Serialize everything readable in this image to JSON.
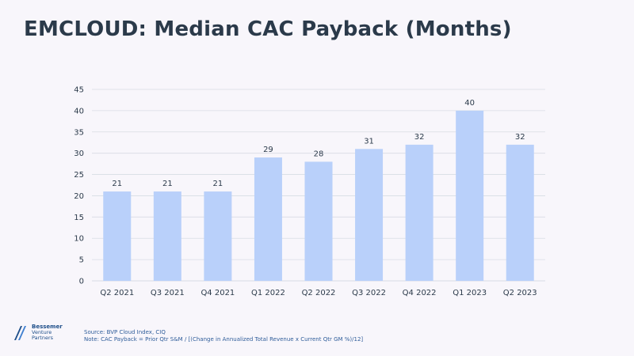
{
  "title": "EMCLOUD: Median CAC Payback (Months)",
  "colors": {
    "bar": "#b9d0fa",
    "grid": "#d7dce4",
    "text": "#2b3a4a",
    "accent": "#1f4f8a"
  },
  "chart_data": {
    "type": "bar",
    "categories": [
      "Q2 2021",
      "Q3 2021",
      "Q4 2021",
      "Q1 2022",
      "Q2 2022",
      "Q3 2022",
      "Q4 2022",
      "Q1 2023",
      "Q2 2023"
    ],
    "values": [
      21,
      21,
      21,
      29,
      28,
      31,
      32,
      40,
      32
    ],
    "title": "",
    "xlabel": "",
    "ylabel": "",
    "ylim": [
      0,
      45
    ],
    "yticks": [
      0,
      5,
      10,
      15,
      20,
      25,
      30,
      35,
      40,
      45
    ],
    "grid": true,
    "data_labels": true
  },
  "footer": {
    "logo": {
      "line1": "Bessemer",
      "line2": "Venture",
      "line3": "Partners"
    },
    "source": "Source: BVP Cloud Index, CIQ",
    "note": "Note: CAC Payback = Prior Qtr S&M / [(Change in Annualized Total Revenue x Current Qtr GM %)/12]"
  }
}
